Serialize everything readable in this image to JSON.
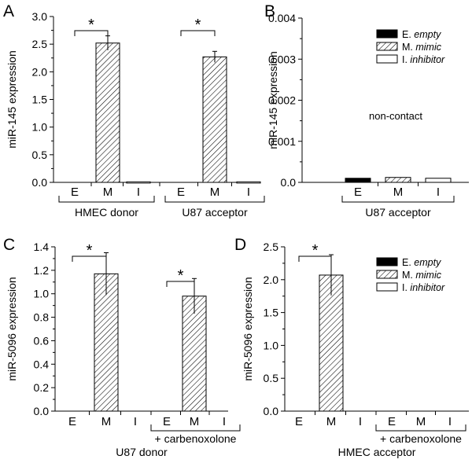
{
  "colors": {
    "axis": "#000000",
    "empty": "#000000",
    "mimic": "#ffffff",
    "inhibitor": "#ffffff",
    "hatch": "#000000"
  },
  "legend": [
    {
      "prefix": "E. ",
      "label": "empty",
      "style": "empty"
    },
    {
      "prefix": "M. ",
      "label": "mimic",
      "style": "mimic"
    },
    {
      "prefix": "I. ",
      "label": "inhibitor",
      "style": "inhibitor"
    }
  ],
  "chart_data": [
    {
      "panel": "A",
      "type": "bar",
      "ylabel": "miR-145 expression",
      "ylim": [
        0,
        3.0
      ],
      "ytick_labels": [
        "0.0",
        "0.5",
        "1.0",
        "1.5",
        "2.0",
        "2.5",
        "3.0"
      ],
      "categories": [
        "E",
        "M",
        "I",
        "E",
        "M",
        "I"
      ],
      "styles": [
        "empty",
        "mimic",
        "inhibitor",
        "empty",
        "mimic",
        "inhibitor"
      ],
      "values": [
        0,
        2.52,
        0.01,
        0,
        2.27,
        0.01
      ],
      "errors": [
        0,
        0.13,
        0,
        0,
        0.1,
        0
      ],
      "groups": [
        {
          "label": "HMEC donor",
          "start": 0,
          "end": 2
        },
        {
          "label": "U87 acceptor",
          "start": 3,
          "end": 5
        }
      ],
      "sig": [
        {
          "from": 0,
          "to": 1,
          "label": "*"
        },
        {
          "from": 3,
          "to": 4,
          "label": "*"
        }
      ],
      "annotation": "",
      "legend": false
    },
    {
      "panel": "B",
      "type": "bar",
      "ylabel": "miR-145 expression",
      "ylim": [
        0,
        0.004
      ],
      "ytick_labels": [
        "0.0",
        "0.001",
        "0.002",
        "0.003",
        "0.004"
      ],
      "categories": [
        "E",
        "M",
        "I"
      ],
      "styles": [
        "empty",
        "mimic",
        "inhibitor"
      ],
      "values": [
        0.0001,
        0.00012,
        0.0001
      ],
      "errors": [
        0,
        0,
        0
      ],
      "groups": [
        {
          "label": "U87 acceptor",
          "start": 0,
          "end": 2
        }
      ],
      "sig": [],
      "annotation": "non-contact",
      "legend": true
    },
    {
      "panel": "C",
      "type": "bar",
      "ylabel": "miR-5096 expression",
      "ylim": [
        0,
        1.4
      ],
      "ytick_labels": [
        "0.0",
        "0.2",
        "0.4",
        "0.6",
        "0.8",
        "1.0",
        "1.2",
        "1.4"
      ],
      "categories": [
        "E",
        "M",
        "I",
        "E",
        "M",
        "I"
      ],
      "styles": [
        "empty",
        "mimic",
        "inhibitor",
        "empty",
        "mimic",
        "inhibitor"
      ],
      "values": [
        0,
        1.17,
        0,
        0,
        0.98,
        0
      ],
      "errors": [
        0,
        0.18,
        0,
        0,
        0.15,
        0
      ],
      "groups": [
        {
          "label": "+ carbenoxolone",
          "start": 3,
          "end": 5
        }
      ],
      "sig": [
        {
          "from": 0,
          "to": 1,
          "label": "*"
        },
        {
          "from": 3,
          "to": 4,
          "label": "*"
        }
      ],
      "xlabel": "U87 donor",
      "annotation": "",
      "legend": false
    },
    {
      "panel": "D",
      "type": "bar",
      "ylabel": "miR-5096 expression",
      "ylim": [
        0,
        2.5
      ],
      "ytick_labels": [
        "0.0",
        "0.5",
        "1.0",
        "1.5",
        "2.0",
        "2.5"
      ],
      "categories": [
        "E",
        "M",
        "I",
        "E",
        "M",
        "I"
      ],
      "styles": [
        "empty",
        "mimic",
        "inhibitor",
        "empty",
        "mimic",
        "inhibitor"
      ],
      "values": [
        0,
        2.07,
        0,
        0,
        0,
        0
      ],
      "errors": [
        0,
        0.31,
        0,
        0,
        0,
        0
      ],
      "groups": [
        {
          "label": "+ carbenoxolone",
          "start": 3,
          "end": 5
        }
      ],
      "sig": [
        {
          "from": 0,
          "to": 1,
          "label": "*"
        }
      ],
      "xlabel": "HMEC acceptor",
      "annotation": "",
      "legend": true
    }
  ]
}
